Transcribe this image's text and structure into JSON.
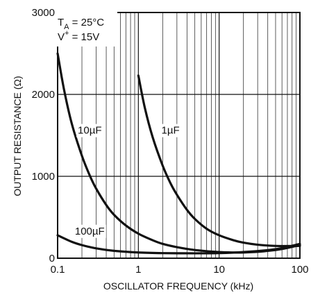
{
  "chart_data": {
    "type": "line",
    "xlabel": "OSCILLATOR FREQUENCY (kHz)",
    "ylabel": "OUTPUT RESISTANCE (Ω)",
    "x_scale": "log",
    "xlim": [
      0.1,
      100
    ],
    "ylim": [
      0,
      3000
    ],
    "grid": true,
    "x_ticks": [
      "0.1",
      "1",
      "10",
      "100"
    ],
    "y_ticks": [
      "0",
      "1000",
      "2000",
      "3000"
    ],
    "y_tick_values": [
      0,
      1000,
      2000,
      3000
    ],
    "conditions": {
      "ta": {
        "symbol": "T",
        "sub": "A",
        "rest": " = 25°C"
      },
      "vplus": {
        "symbol": "V",
        "sup": "+",
        "rest": " = 15V"
      }
    },
    "series": [
      {
        "name": "10µF",
        "x": [
          0.1,
          0.12,
          0.15,
          0.2,
          0.25,
          0.3,
          0.4,
          0.5,
          0.7,
          1,
          1.5,
          2,
          3,
          5,
          10,
          20,
          50,
          100
        ],
        "y": [
          2500,
          2060,
          1640,
          1250,
          1010,
          850,
          650,
          530,
          400,
          300,
          220,
          175,
          135,
          100,
          75,
          70,
          100,
          160
        ]
      },
      {
        "name": "1µF",
        "x": [
          1,
          1.2,
          1.5,
          2,
          2.5,
          3,
          4,
          5,
          7,
          10,
          15,
          20,
          30,
          50,
          100
        ],
        "y": [
          2230,
          1840,
          1480,
          1130,
          915,
          775,
          590,
          480,
          360,
          280,
          220,
          190,
          165,
          150,
          150
        ]
      },
      {
        "name": "100µF",
        "x": [
          0.1,
          0.15,
          0.2,
          0.3,
          0.5,
          1,
          2,
          5,
          10,
          20,
          50,
          100
        ],
        "y": [
          280,
          200,
          160,
          120,
          90,
          70,
          62,
          60,
          62,
          75,
          110,
          175
        ]
      }
    ]
  }
}
